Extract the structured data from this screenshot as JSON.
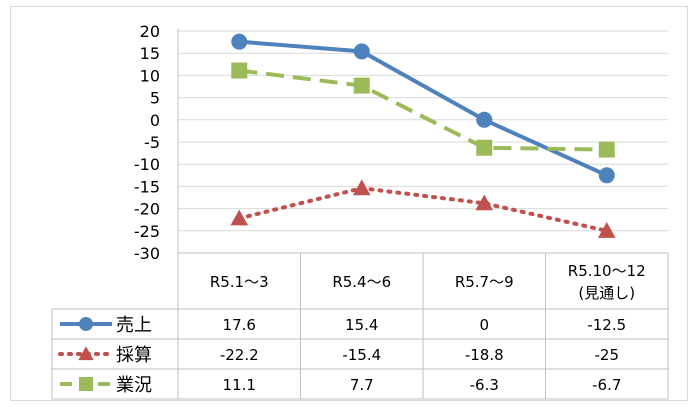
{
  "chart_data": {
    "type": "line",
    "categories": [
      "R5.1〜3",
      "R5.4〜6",
      "R5.7〜9",
      "R5.10〜12\n(見通し)"
    ],
    "ylim": [
      -30,
      20
    ],
    "yticks": [
      20,
      15,
      10,
      5,
      0,
      -5,
      -10,
      -15,
      -20,
      -25,
      -30
    ],
    "grid": true,
    "legend_placement": "data-table",
    "series": [
      {
        "name": "売上",
        "values": [
          17.6,
          15.4,
          0,
          -12.5
        ],
        "labels": [
          "17.6",
          "15.4",
          "0",
          "-12.5"
        ],
        "color": "#4f81bd",
        "style": "solid",
        "marker": "circle"
      },
      {
        "name": "採算",
        "values": [
          -22.2,
          -15.4,
          -18.8,
          -25
        ],
        "labels": [
          "-22.2",
          "-15.4",
          "-18.8",
          "-25"
        ],
        "color": "#c0504d",
        "style": "dotted",
        "marker": "triangle"
      },
      {
        "name": "業況",
        "values": [
          11.1,
          7.7,
          -6.3,
          -6.7
        ],
        "labels": [
          "11.1",
          "7.7",
          "-6.3",
          "-6.7"
        ],
        "color": "#9bbb59",
        "style": "dashed",
        "marker": "square"
      }
    ]
  }
}
